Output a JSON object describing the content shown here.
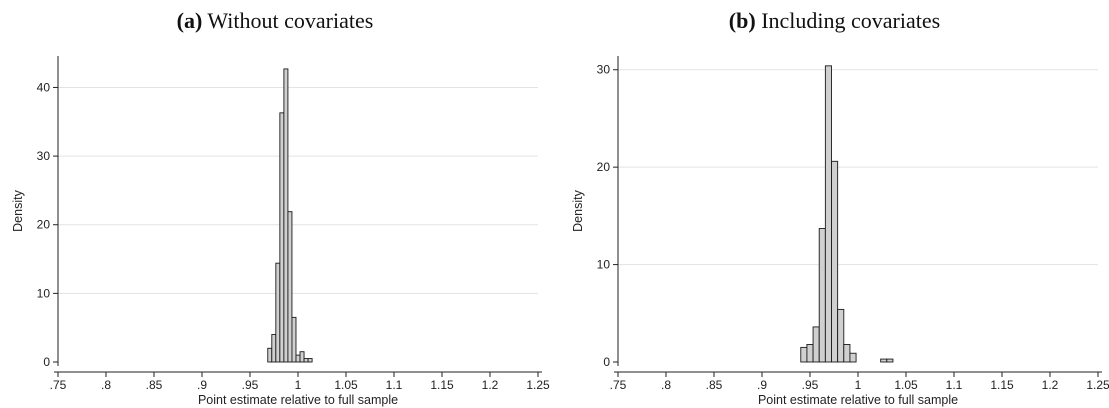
{
  "chart_data": [
    {
      "type": "bar",
      "title_tag": "(a)",
      "title_text": "Without covariates",
      "xlabel": "Point estimate relative to full sample",
      "ylabel": "Density",
      "xlim": [
        0.75,
        1.25
      ],
      "ylim": [
        0,
        44
      ],
      "xticks": [
        0.75,
        0.8,
        0.85,
        0.9,
        0.95,
        1.0,
        1.05,
        1.1,
        1.15,
        1.2,
        1.25
      ],
      "xtick_labels": [
        ".75",
        ".8",
        ".85",
        ".9",
        ".95",
        "1",
        "1.05",
        "1.1",
        "1.15",
        "1.2",
        "1.25"
      ],
      "yticks": [
        0,
        10,
        20,
        30,
        40
      ],
      "ytick_labels": [
        "0",
        "10",
        "20",
        "30",
        "40"
      ],
      "grid": true,
      "bin_width": 0.0042,
      "bins": [
        {
          "x": 0.9685,
          "y": 2.0
        },
        {
          "x": 0.9727,
          "y": 4.0
        },
        {
          "x": 0.9769,
          "y": 14.4
        },
        {
          "x": 0.9811,
          "y": 36.3
        },
        {
          "x": 0.9853,
          "y": 42.7
        },
        {
          "x": 0.9895,
          "y": 21.9
        },
        {
          "x": 0.9937,
          "y": 6.5
        },
        {
          "x": 0.9979,
          "y": 1.0
        },
        {
          "x": 1.0021,
          "y": 1.5
        },
        {
          "x": 1.0063,
          "y": 0.5
        },
        {
          "x": 1.0105,
          "y": 0.5
        }
      ],
      "bar_color": "#d0d0d0",
      "bar_edge_color": "#1a1a1a"
    },
    {
      "type": "bar",
      "title_tag": "(b)",
      "title_text": "Including covariates",
      "xlabel": "Point estimate relative to full sample",
      "ylabel": "Density",
      "xlim": [
        0.75,
        1.25
      ],
      "ylim": [
        0,
        31
      ],
      "xticks": [
        0.75,
        0.8,
        0.85,
        0.9,
        0.95,
        1.0,
        1.05,
        1.1,
        1.15,
        1.2,
        1.25
      ],
      "xtick_labels": [
        ".75",
        ".8",
        ".85",
        ".9",
        ".95",
        "1",
        "1.05",
        "1.1",
        "1.15",
        "1.2",
        "1.25"
      ],
      "yticks": [
        0,
        10,
        20,
        30
      ],
      "ytick_labels": [
        "0",
        "10",
        "20",
        "30"
      ],
      "grid": true,
      "bin_width": 0.0064,
      "bins": [
        {
          "x": 0.9404,
          "y": 1.5
        },
        {
          "x": 0.9468,
          "y": 1.8
        },
        {
          "x": 0.9532,
          "y": 3.6
        },
        {
          "x": 0.9596,
          "y": 13.7
        },
        {
          "x": 0.966,
          "y": 30.4
        },
        {
          "x": 0.9724,
          "y": 20.6
        },
        {
          "x": 0.9788,
          "y": 5.4
        },
        {
          "x": 0.9852,
          "y": 1.8
        },
        {
          "x": 0.9916,
          "y": 0.9
        },
        {
          "x": 0.998,
          "y": 0.0
        },
        {
          "x": 1.0044,
          "y": 0.0
        },
        {
          "x": 1.0108,
          "y": 0.0
        },
        {
          "x": 1.0172,
          "y": 0.0
        },
        {
          "x": 1.0236,
          "y": 0.3
        },
        {
          "x": 1.03,
          "y": 0.3
        }
      ],
      "bar_color": "#d0d0d0",
      "bar_edge_color": "#1a1a1a"
    }
  ]
}
